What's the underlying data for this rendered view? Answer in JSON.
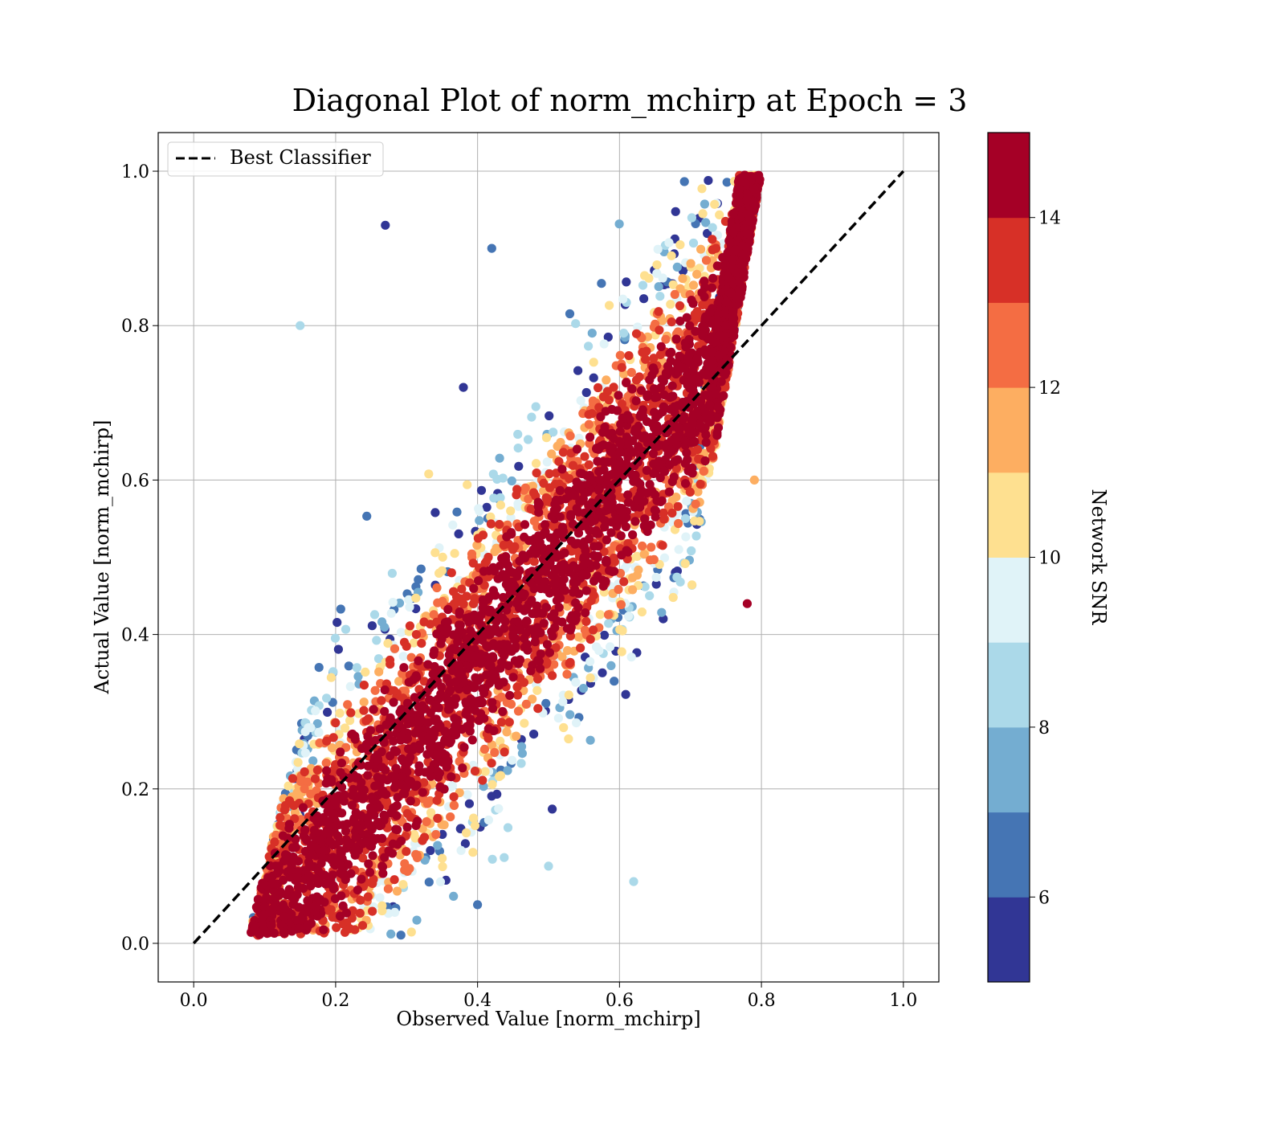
{
  "chart_data": {
    "type": "scatter",
    "title": "Diagonal Plot of norm_mchirp at Epoch = 3",
    "xlabel": "Observed Value [norm_mchirp]",
    "ylabel": "Actual Value [norm_mchirp]",
    "xlim": [
      -0.05,
      1.05
    ],
    "ylim": [
      -0.05,
      1.05
    ],
    "xticks": [
      "0.0",
      "0.2",
      "0.4",
      "0.6",
      "0.8",
      "1.0"
    ],
    "yticks": [
      "0.0",
      "0.2",
      "0.4",
      "0.6",
      "0.8",
      "1.0"
    ],
    "grid": true,
    "legend": {
      "placement": "top-left",
      "entries": [
        "Best Classifier"
      ]
    },
    "reference_line": {
      "name": "Best Classifier",
      "x": [
        0.0,
        1.0
      ],
      "y": [
        0.0,
        1.0
      ],
      "style": "dashed",
      "color": "#000000"
    },
    "colorbar": {
      "label": "Network SNR",
      "range": [
        5,
        15
      ],
      "ticks": [
        "6",
        "8",
        "10",
        "12",
        "14"
      ],
      "colors": [
        "#313695",
        "#4575b4",
        "#74add1",
        "#abd9e9",
        "#e0f3f8",
        "#fee090",
        "#fdae61",
        "#f46d43",
        "#d73027",
        "#a50026"
      ]
    },
    "points_sample": [
      {
        "x": 0.12,
        "y": 0.1,
        "snr": 14.8
      },
      {
        "x": 0.2,
        "y": 0.18,
        "snr": 14.5
      },
      {
        "x": 0.3,
        "y": 0.3,
        "snr": 14.9
      },
      {
        "x": 0.45,
        "y": 0.4,
        "snr": 14.7
      },
      {
        "x": 0.55,
        "y": 0.5,
        "snr": 14.6
      },
      {
        "x": 0.65,
        "y": 0.65,
        "snr": 14.8
      },
      {
        "x": 0.75,
        "y": 0.8,
        "snr": 14.9
      },
      {
        "x": 0.38,
        "y": 0.72,
        "snr": 5.5
      },
      {
        "x": 0.42,
        "y": 0.9,
        "snr": 6.8
      },
      {
        "x": 0.27,
        "y": 0.93,
        "snr": 5.2
      },
      {
        "x": 0.15,
        "y": 0.8,
        "snr": 8.5
      },
      {
        "x": 0.4,
        "y": 0.05,
        "snr": 6.2
      },
      {
        "x": 0.5,
        "y": 0.1,
        "snr": 8.1
      },
      {
        "x": 0.62,
        "y": 0.08,
        "snr": 8.9
      },
      {
        "x": 0.78,
        "y": 0.44,
        "snr": 14.9
      },
      {
        "x": 0.79,
        "y": 0.6,
        "snr": 11.5
      }
    ]
  }
}
